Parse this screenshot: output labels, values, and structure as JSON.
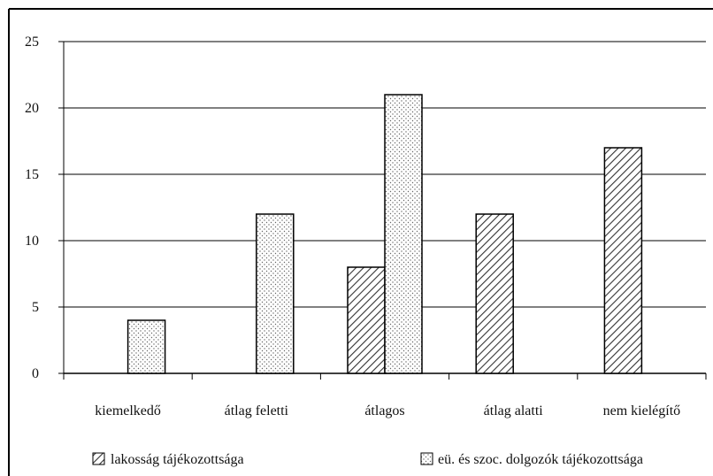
{
  "chart_data": {
    "type": "bar",
    "categories": [
      "kiemelkedő",
      "átlag feletti",
      "átlagos",
      "átlag alatti",
      "nem kielégítő"
    ],
    "series": [
      {
        "name": "lakosság tájékozottsága",
        "values": [
          0,
          0,
          8,
          12,
          17
        ],
        "pattern": "hatched"
      },
      {
        "name": "eü. és szoc. dolgozók tájékozottsága",
        "values": [
          4,
          12,
          21,
          0,
          0
        ],
        "pattern": "dotted"
      }
    ],
    "ylim": [
      0,
      25
    ],
    "yticks": [
      "0",
      "5",
      "10",
      "15",
      "20",
      "25"
    ],
    "title": "",
    "xlabel": "",
    "ylabel": "",
    "grid": true,
    "legend_position": "bottom",
    "colors": {
      "bar_outline": "#000000",
      "fill": "#ffffff",
      "pattern": "#444444"
    }
  }
}
